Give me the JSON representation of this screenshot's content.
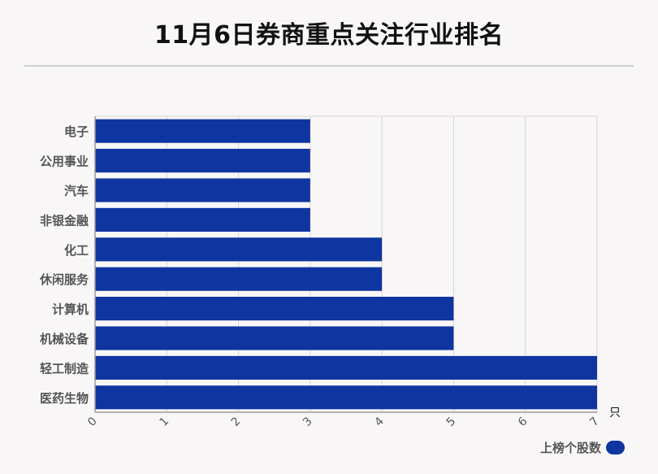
{
  "title": "11月6日券商重点关注行业排名",
  "colors": {
    "bar": "#0f35a0",
    "grid": "#d6d6d6",
    "axis": "#9a9a9a",
    "label": "#555555"
  },
  "chart_data": {
    "type": "bar",
    "orientation": "horizontal",
    "categories": [
      "电子",
      "公用事业",
      "汽车",
      "非银金融",
      "化工",
      "休闲服务",
      "计算机",
      "机械设备",
      "轻工制造",
      "医药生物"
    ],
    "series": [
      {
        "name": "上榜个股数",
        "values": [
          3,
          3,
          3,
          3,
          4,
          4,
          5,
          5,
          7,
          7
        ]
      }
    ],
    "xlim": [
      0,
      7
    ],
    "xticks": [
      "0",
      "1",
      "2",
      "3",
      "4",
      "5",
      "6",
      "7"
    ],
    "xunit": "只",
    "grid": true,
    "legend": "bottom-right"
  }
}
